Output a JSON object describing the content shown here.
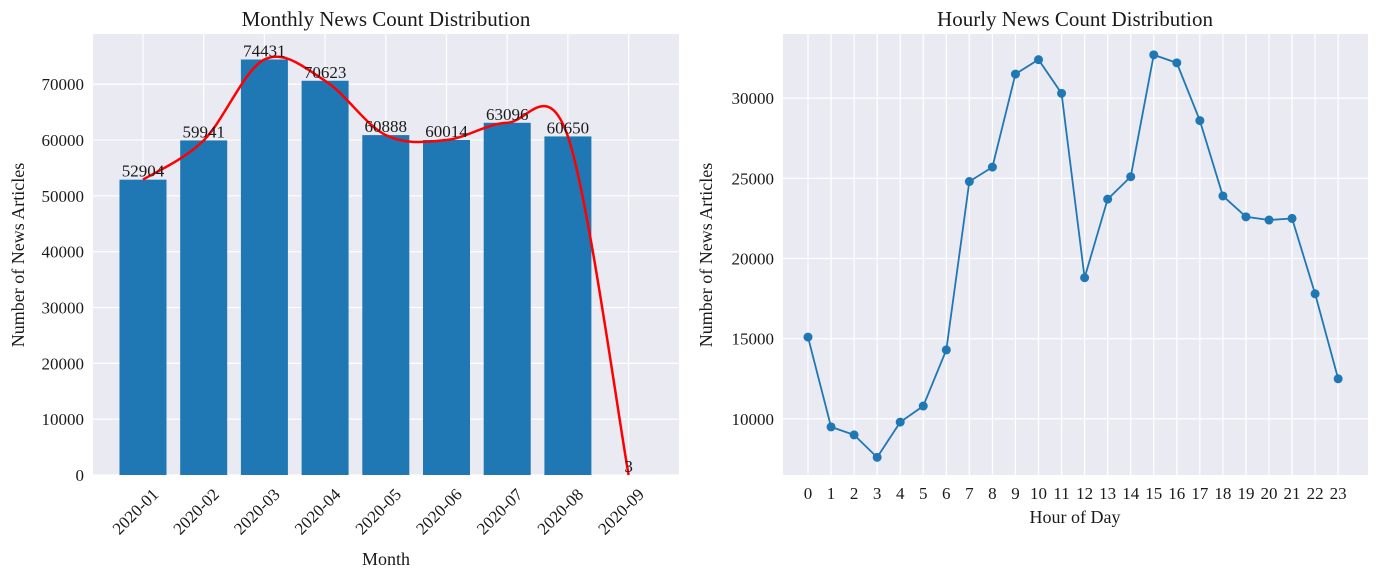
{
  "chart_data": [
    {
      "type": "bar",
      "title": "Monthly News Count Distribution",
      "xlabel": "Month",
      "ylabel": "Number of News Articles",
      "categories": [
        "2020-01",
        "2020-02",
        "2020-03",
        "2020-04",
        "2020-05",
        "2020-06",
        "2020-07",
        "2020-08",
        "2020-09"
      ],
      "values": [
        52904,
        59941,
        74431,
        70623,
        60888,
        60014,
        63096,
        60650,
        3
      ],
      "data_labels": [
        "52904",
        "59941",
        "74431",
        "70623",
        "60888",
        "60014",
        "63096",
        "60650",
        "3"
      ],
      "yticks": [
        0,
        10000,
        20000,
        30000,
        40000,
        50000,
        60000,
        70000
      ],
      "ylim": [
        0,
        79000
      ],
      "overlay": "smooth curve",
      "bar_color": "#1f77b4",
      "curve_color": "#ff0000",
      "grid": true
    },
    {
      "type": "line",
      "title": "Hourly News Count Distribution",
      "xlabel": "Hour of Day",
      "ylabel": "Number of News Articles",
      "x": [
        0,
        1,
        2,
        3,
        4,
        5,
        6,
        7,
        8,
        9,
        10,
        11,
        12,
        13,
        14,
        15,
        16,
        17,
        18,
        19,
        20,
        21,
        22,
        23
      ],
      "values": [
        15100,
        9500,
        9000,
        7600,
        9800,
        10800,
        14300,
        24800,
        25700,
        31500,
        32400,
        30300,
        18800,
        23700,
        25100,
        32700,
        32200,
        28600,
        23900,
        22600,
        22400,
        22500,
        17800,
        12500
      ],
      "yticks": [
        10000,
        15000,
        20000,
        25000,
        30000
      ],
      "ylim": [
        6500,
        34000
      ],
      "marker": "circle",
      "line_color": "#1f77b4",
      "grid": true
    }
  ]
}
